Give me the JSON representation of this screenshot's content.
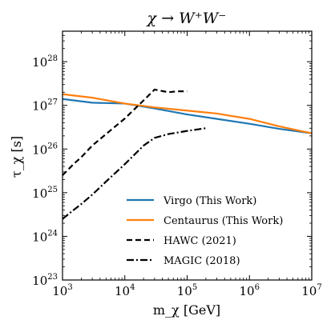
{
  "chart_data": {
    "type": "line",
    "title": "χ → W⁺W⁻",
    "xlabel": "m_χ [GeV]",
    "ylabel": "τ_χ [s]",
    "xscale": "log",
    "yscale": "log",
    "xlim": [
      1000,
      10000000
    ],
    "ylim": [
      1e+23,
      5e+28
    ],
    "x_ticks": [
      {
        "value": 1000,
        "base": "10",
        "exp": "3"
      },
      {
        "value": 10000,
        "base": "10",
        "exp": "4"
      },
      {
        "value": 100000,
        "base": "10",
        "exp": "5"
      },
      {
        "value": 1000000,
        "base": "10",
        "exp": "6"
      },
      {
        "value": 10000000,
        "base": "10",
        "exp": "7"
      }
    ],
    "y_ticks": [
      {
        "value": 1e+23,
        "base": "10",
        "exp": "23"
      },
      {
        "value": 1e+24,
        "base": "10",
        "exp": "24"
      },
      {
        "value": 1e+25,
        "base": "10",
        "exp": "25"
      },
      {
        "value": 1e+26,
        "base": "10",
        "exp": "26"
      },
      {
        "value": 1e+27,
        "base": "10",
        "exp": "27"
      },
      {
        "value": 1e+28,
        "base": "10",
        "exp": "28"
      }
    ],
    "grid": false,
    "legend_position": "lower-right",
    "series": [
      {
        "name": "Virgo (This Work)",
        "color": "#1f77b4",
        "style": "solid",
        "x": [
          1000,
          3000,
          10000,
          30000,
          100000,
          300000,
          1000000,
          3000000,
          10000000
        ],
        "y": [
          1.4e+27,
          1.15e+27,
          1.1e+27,
          8.5e+26,
          6.2e+26,
          4.9e+26,
          3.8e+26,
          2.9e+26,
          2.3e+26
        ]
      },
      {
        "name": "Centaurus (This Work)",
        "color": "#ff7f0e",
        "style": "solid",
        "x": [
          1000,
          3000,
          10000,
          30000,
          100000,
          300000,
          1000000,
          3000000,
          10000000
        ],
        "y": [
          1.8e+27,
          1.5e+27,
          1.1e+27,
          9e+26,
          7.6e+26,
          6.5e+26,
          4.9e+26,
          3.3e+26,
          2.3e+26
        ]
      },
      {
        "name": "HAWC (2021)",
        "color": "#000000",
        "style": "dashed",
        "x": [
          1000,
          1500,
          2000,
          3000,
          5000,
          10000,
          20000,
          30000,
          50000,
          70000,
          100000
        ],
        "y": [
          2.5e+25,
          4.5e+25,
          6.5e+25,
          1.2e+26,
          2.2e+26,
          5e+26,
          1.3e+27,
          2.3e+27,
          2e+27,
          2.1e+27,
          2.1e+27
        ]
      },
      {
        "name": "MAGIC (2018)",
        "color": "#000000",
        "style": "dashdot",
        "x": [
          1000,
          1500,
          2000,
          3000,
          5000,
          10000,
          20000,
          30000,
          50000,
          100000,
          200000
        ],
        "y": [
          2.5e+24,
          4e+24,
          5.5e+24,
          9e+24,
          1.8e+25,
          4.5e+25,
          1.2e+26,
          1.8e+26,
          2.2e+26,
          2.6e+26,
          3e+26
        ]
      }
    ]
  }
}
